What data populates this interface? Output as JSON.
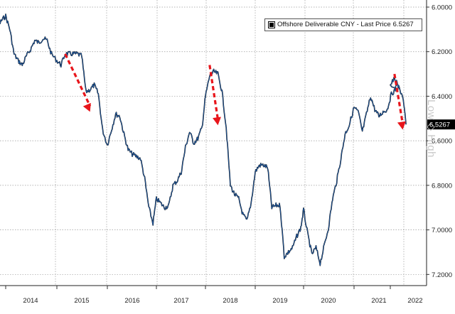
{
  "chart_data": {
    "type": "line",
    "title": "",
    "xlabel": "",
    "ylabel": "",
    "x_ticks": [
      "2014",
      "2015",
      "2016",
      "2017",
      "2018",
      "2019",
      "2020",
      "2021",
      "2022"
    ],
    "y_ticks": [
      "6.0000",
      "6.2000",
      "6.4000",
      "6.6000",
      "6.8000",
      "7.0000",
      "7.2000"
    ],
    "ylim": [
      6.0,
      7.25
    ],
    "y_inverted": true,
    "grid": true,
    "legend_placement": "top-right",
    "series": [
      {
        "name": "Offshore Deliverable CNY - Last Price",
        "last_price": "6.5267",
        "color": "#2060b0",
        "points": [
          [
            "2013-09",
            6.08
          ],
          [
            "2013-10",
            6.09
          ],
          [
            "2013-11",
            6.09
          ],
          [
            "2013-12",
            6.06
          ],
          [
            "2014-01",
            6.04
          ],
          [
            "2014-02",
            6.1
          ],
          [
            "2014-03",
            6.21
          ],
          [
            "2014-04",
            6.24
          ],
          [
            "2014-05",
            6.26
          ],
          [
            "2014-06",
            6.22
          ],
          [
            "2014-07",
            6.19
          ],
          [
            "2014-08",
            6.15
          ],
          [
            "2014-09",
            6.16
          ],
          [
            "2014-10",
            6.14
          ],
          [
            "2014-11",
            6.15
          ],
          [
            "2014-12",
            6.21
          ],
          [
            "2015-01",
            6.24
          ],
          [
            "2015-02",
            6.26
          ],
          [
            "2015-03",
            6.21
          ],
          [
            "2015-04",
            6.21
          ],
          [
            "2015-05",
            6.21
          ],
          [
            "2015-06",
            6.21
          ],
          [
            "2015-07",
            6.22
          ],
          [
            "2015-08",
            6.38
          ],
          [
            "2015-09",
            6.37
          ],
          [
            "2015-10",
            6.35
          ],
          [
            "2015-11",
            6.39
          ],
          [
            "2015-12",
            6.55
          ],
          [
            "2016-01",
            6.62
          ],
          [
            "2016-02",
            6.55
          ],
          [
            "2016-03",
            6.48
          ],
          [
            "2016-04",
            6.49
          ],
          [
            "2016-05",
            6.57
          ],
          [
            "2016-06",
            6.64
          ],
          [
            "2016-07",
            6.66
          ],
          [
            "2016-08",
            6.67
          ],
          [
            "2016-09",
            6.68
          ],
          [
            "2016-10",
            6.77
          ],
          [
            "2016-11",
            6.9
          ],
          [
            "2016-12",
            6.97
          ],
          [
            "2017-01",
            6.86
          ],
          [
            "2017-02",
            6.88
          ],
          [
            "2017-03",
            6.9
          ],
          [
            "2017-04",
            6.89
          ],
          [
            "2017-05",
            6.8
          ],
          [
            "2017-06",
            6.78
          ],
          [
            "2017-07",
            6.74
          ],
          [
            "2017-08",
            6.63
          ],
          [
            "2017-09",
            6.56
          ],
          [
            "2017-10",
            6.61
          ],
          [
            "2017-11",
            6.59
          ],
          [
            "2017-12",
            6.54
          ],
          [
            "2018-01",
            6.4
          ],
          [
            "2018-02",
            6.31
          ],
          [
            "2018-03",
            6.29
          ],
          [
            "2018-04",
            6.3
          ],
          [
            "2018-05",
            6.38
          ],
          [
            "2018-06",
            6.54
          ],
          [
            "2018-07",
            6.8
          ],
          [
            "2018-08",
            6.84
          ],
          [
            "2018-09",
            6.86
          ],
          [
            "2018-10",
            6.93
          ],
          [
            "2018-11",
            6.96
          ],
          [
            "2018-12",
            6.88
          ],
          [
            "2019-01",
            6.74
          ],
          [
            "2019-02",
            6.71
          ],
          [
            "2019-03",
            6.71
          ],
          [
            "2019-04",
            6.72
          ],
          [
            "2019-05",
            6.9
          ],
          [
            "2019-06",
            6.89
          ],
          [
            "2019-07",
            6.89
          ],
          [
            "2019-08",
            7.12
          ],
          [
            "2019-09",
            7.1
          ],
          [
            "2019-10",
            7.08
          ],
          [
            "2019-11",
            7.03
          ],
          [
            "2019-12",
            6.99
          ],
          [
            "2020-01",
            6.91
          ],
          [
            "2020-02",
            7.02
          ],
          [
            "2020-03",
            7.11
          ],
          [
            "2020-04",
            7.08
          ],
          [
            "2020-05",
            7.15
          ],
          [
            "2020-06",
            7.07
          ],
          [
            "2020-07",
            6.99
          ],
          [
            "2020-08",
            6.86
          ],
          [
            "2020-09",
            6.78
          ],
          [
            "2020-10",
            6.68
          ],
          [
            "2020-11",
            6.57
          ],
          [
            "2020-12",
            6.53
          ],
          [
            "2021-01",
            6.45
          ],
          [
            "2021-02",
            6.47
          ],
          [
            "2021-03",
            6.56
          ],
          [
            "2021-04",
            6.48
          ],
          [
            "2021-05",
            6.4
          ],
          [
            "2021-06",
            6.46
          ],
          [
            "2021-07",
            6.49
          ],
          [
            "2021-08",
            6.47
          ],
          [
            "2021-09",
            6.46
          ],
          [
            "2021-10",
            6.39
          ],
          [
            "2021-11",
            6.37
          ],
          [
            "2021-12",
            6.36
          ],
          [
            "2022-01",
            6.35
          ],
          [
            "2022-02",
            6.32
          ],
          [
            "2022-03",
            6.36
          ],
          [
            "2022-04",
            6.4
          ],
          [
            "2022-04-25",
            6.5267
          ]
        ]
      }
    ],
    "annotations": [
      {
        "type": "red-dashed-down-arrow",
        "from": [
          "2015-03",
          6.21
        ],
        "to": [
          "2015-09",
          6.47
        ]
      },
      {
        "type": "red-dashed-down-arrow",
        "from": [
          "2018-02",
          6.26
        ],
        "to": [
          "2018-04",
          6.53
        ]
      },
      {
        "type": "red-dashed-down-arrow",
        "from": [
          "2022-02",
          6.3
        ],
        "to": [
          "2022-04",
          6.55
        ]
      }
    ],
    "right_axis_label": {
      "low": "Low",
      "high": "High"
    }
  }
}
